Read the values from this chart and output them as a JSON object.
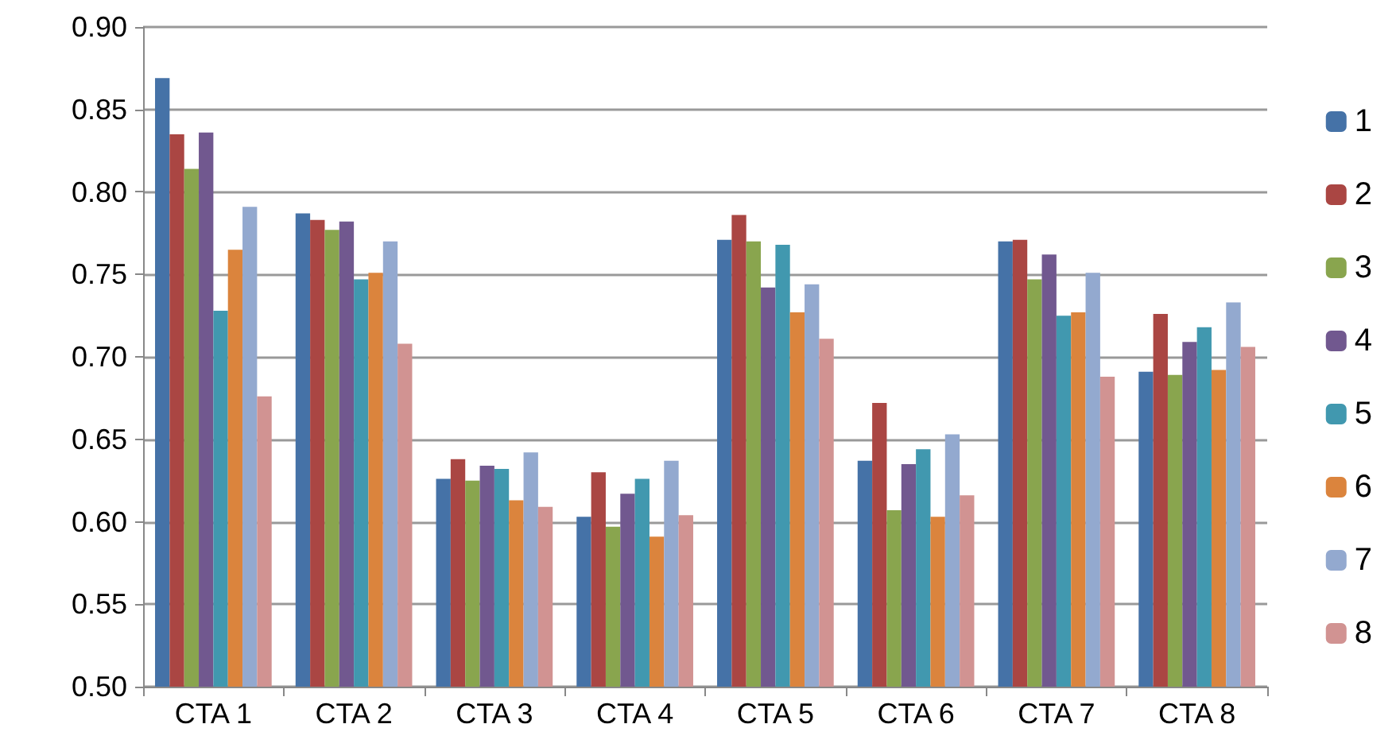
{
  "chart_data": {
    "type": "bar",
    "categories": [
      "CTA 1",
      "CTA 2",
      "CTA 3",
      "CTA 4",
      "CTA 5",
      "CTA 6",
      "CTA 7",
      "CTA 8"
    ],
    "series": [
      {
        "name": "1",
        "color": "#4572a7",
        "values": [
          0.869,
          0.787,
          0.626,
          0.603,
          0.771,
          0.637,
          0.77,
          0.691
        ]
      },
      {
        "name": "2",
        "color": "#aa4643",
        "values": [
          0.835,
          0.783,
          0.638,
          0.63,
          0.786,
          0.672,
          0.771,
          0.726
        ]
      },
      {
        "name": "3",
        "color": "#89a54e",
        "values": [
          0.814,
          0.777,
          0.625,
          0.597,
          0.77,
          0.607,
          0.747,
          0.689
        ]
      },
      {
        "name": "4",
        "color": "#71588f",
        "values": [
          0.836,
          0.782,
          0.634,
          0.617,
          0.742,
          0.635,
          0.762,
          0.709
        ]
      },
      {
        "name": "5",
        "color": "#4198af",
        "values": [
          0.728,
          0.747,
          0.632,
          0.626,
          0.768,
          0.644,
          0.725,
          0.718
        ]
      },
      {
        "name": "6",
        "color": "#db843d",
        "values": [
          0.765,
          0.751,
          0.613,
          0.591,
          0.727,
          0.603,
          0.727,
          0.692
        ]
      },
      {
        "name": "7",
        "color": "#93a9cf",
        "values": [
          0.791,
          0.77,
          0.642,
          0.637,
          0.744,
          0.653,
          0.751,
          0.733
        ]
      },
      {
        "name": "8",
        "color": "#d19392",
        "values": [
          0.676,
          0.708,
          0.609,
          0.604,
          0.711,
          0.616,
          0.688,
          0.706
        ]
      }
    ],
    "ylim": [
      0.5,
      0.9
    ],
    "yticks": [
      {
        "value": 0.5,
        "label": "0.50"
      },
      {
        "value": 0.55,
        "label": "0.55"
      },
      {
        "value": 0.6,
        "label": "0.60"
      },
      {
        "value": 0.65,
        "label": "0.65"
      },
      {
        "value": 0.7,
        "label": "0.70"
      },
      {
        "value": 0.75,
        "label": "0.75"
      },
      {
        "value": 0.8,
        "label": "0.80"
      },
      {
        "value": 0.85,
        "label": "0.85"
      },
      {
        "value": 0.9,
        "label": "0.90"
      }
    ],
    "grid": "y",
    "legend": "right"
  }
}
